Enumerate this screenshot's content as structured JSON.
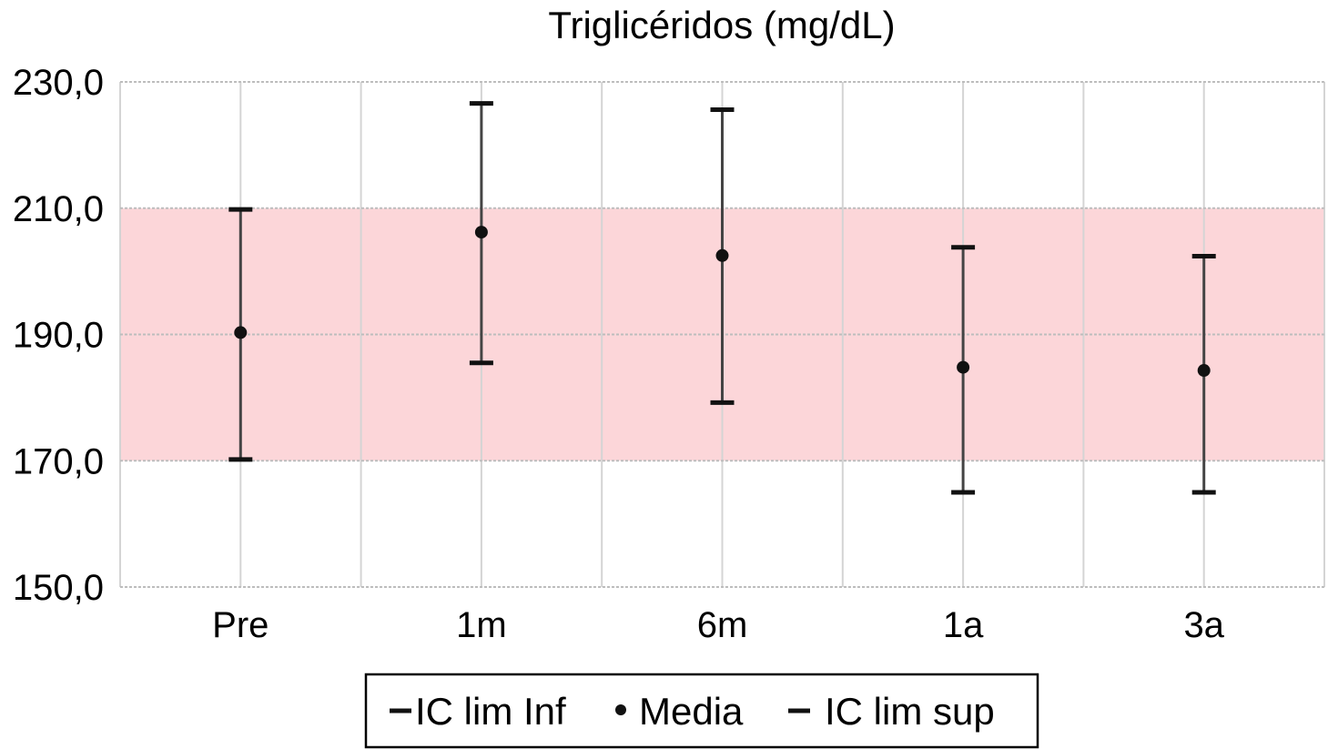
{
  "chart_data": {
    "type": "scatter",
    "title": "Triglicéridos (mg/dL)",
    "xlabel": "",
    "ylabel": "",
    "categories": [
      "Pre",
      "1m",
      "6m",
      "1a",
      "3a"
    ],
    "ylim": [
      150,
      230
    ],
    "yticks": [
      150,
      170,
      190,
      210,
      230
    ],
    "ytick_labels": [
      "150,0",
      "170,0",
      "190,0",
      "210,0",
      "230,0"
    ],
    "grid": true,
    "reference_band": {
      "from": 170,
      "to": 210,
      "color": "#fcd6d9"
    },
    "series": [
      {
        "name": "IC lim Inf",
        "values": [
          170.2,
          185.5,
          179.2,
          165.0,
          165.0
        ]
      },
      {
        "name": "Media",
        "values": [
          190.3,
          206.2,
          202.5,
          184.8,
          184.3
        ]
      },
      {
        "name": "IC lim sup",
        "values": [
          209.8,
          226.6,
          225.6,
          203.8,
          202.4
        ]
      }
    ],
    "legend": {
      "position": "bottom",
      "entries": [
        "IC lim Inf",
        "Media",
        "IC lim sup"
      ]
    },
    "colors": {
      "marker": "#111111",
      "errorbar": "#444444",
      "grid": "#d4d4d4"
    }
  }
}
